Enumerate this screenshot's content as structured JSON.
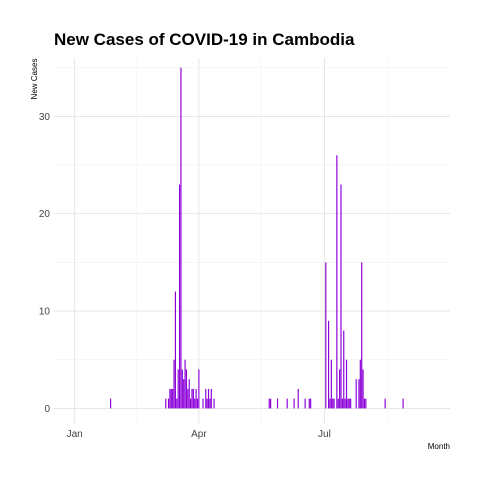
{
  "chart_data": {
    "type": "bar",
    "title": "New Cases of COVID-19 in Cambodia",
    "xlabel": "Month",
    "ylabel": "New Cases",
    "x_ticks": [
      {
        "label": "Jan",
        "day": 0
      },
      {
        "label": "Apr",
        "day": 90
      },
      {
        "label": "Jul",
        "day": 181
      }
    ],
    "x_minor_ticks": [
      45,
      135,
      227
    ],
    "x_range_days": [
      -15,
      272
    ],
    "y_ticks": [
      0,
      10,
      20,
      30
    ],
    "ylim": [
      -1.5,
      36
    ],
    "grid": true,
    "color": "#8B00D9",
    "series": [
      {
        "dates": [
          "2020-01-27",
          "2020-03-07",
          "2020-03-09",
          "2020-03-10",
          "2020-03-11",
          "2020-03-12",
          "2020-03-13",
          "2020-03-14",
          "2020-03-15",
          "2020-03-16",
          "2020-03-17",
          "2020-03-18",
          "2020-03-19",
          "2020-03-20",
          "2020-03-21",
          "2020-03-22",
          "2020-03-23",
          "2020-03-24",
          "2020-03-25",
          "2020-03-26",
          "2020-03-27",
          "2020-03-28",
          "2020-03-29",
          "2020-03-30",
          "2020-03-31",
          "2020-04-03",
          "2020-04-05",
          "2020-04-06",
          "2020-04-07",
          "2020-04-08",
          "2020-04-09",
          "2020-04-11",
          "2020-05-21",
          "2020-05-22",
          "2020-05-27",
          "2020-06-03",
          "2020-06-08",
          "2020-06-11",
          "2020-06-16",
          "2020-06-19",
          "2020-06-20",
          "2020-07-01",
          "2020-07-03",
          "2020-07-04",
          "2020-07-05",
          "2020-07-06",
          "2020-07-07",
          "2020-07-09",
          "2020-07-10",
          "2020-07-11",
          "2020-07-12",
          "2020-07-13",
          "2020-07-14",
          "2020-07-15",
          "2020-07-16",
          "2020-07-17",
          "2020-07-18",
          "2020-07-19",
          "2020-07-23",
          "2020-07-25",
          "2020-07-26",
          "2020-07-27",
          "2020-07-28",
          "2020-07-29",
          "2020-07-30",
          "2020-08-13",
          "2020-08-26"
        ],
        "values": [
          1,
          1,
          1,
          2,
          2,
          2,
          5,
          12,
          1,
          4,
          23,
          35,
          4,
          3,
          5,
          4,
          2,
          3,
          1,
          2,
          2,
          1,
          2,
          1,
          4,
          1,
          2,
          1,
          2,
          1,
          2,
          1,
          1,
          1,
          1,
          1,
          1,
          2,
          1,
          1,
          1,
          15,
          9,
          1,
          5,
          1,
          1,
          26,
          1,
          4,
          23,
          1,
          8,
          1,
          5,
          1,
          1,
          1,
          3,
          3,
          5,
          15,
          4,
          1,
          1,
          1,
          1
        ]
      }
    ]
  }
}
